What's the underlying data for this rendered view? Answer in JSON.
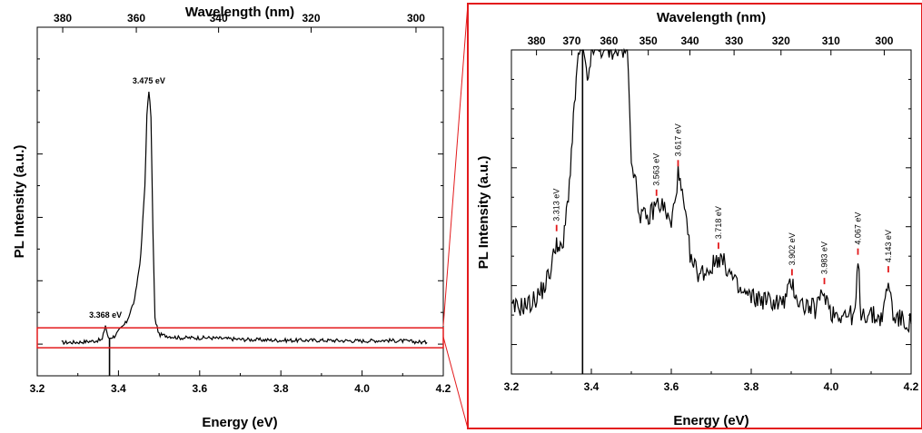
{
  "chart_data": [
    {
      "type": "line",
      "xlabel": "Energy (eV)",
      "ylabel": "PL Intensity (a.u.)",
      "top_axis_label": "Wavelength (nm)",
      "xlim": [
        3.2,
        4.2
      ],
      "ylim": [
        -0.1,
        1.0
      ],
      "x_ticks": [
        "3.2",
        "3.4",
        "3.6",
        "3.8",
        "4.0",
        "4.2"
      ],
      "top_ticks": [
        {
          "wavelength_nm": 380,
          "label": "380"
        },
        {
          "wavelength_nm": 360,
          "label": "360"
        },
        {
          "wavelength_nm": 340,
          "label": "340"
        },
        {
          "wavelength_nm": 320,
          "label": "320"
        },
        {
          "wavelength_nm": 300,
          "label": "300"
        }
      ],
      "y_tick_labels": "none",
      "series": [
        {
          "color": "#000000",
          "points": [
            [
              3.26,
              0.005
            ],
            [
              3.3,
              0.006
            ],
            [
              3.34,
              0.01
            ],
            [
              3.36,
              0.014
            ],
            [
              3.368,
              0.06
            ],
            [
              3.375,
              0.018
            ],
            [
              3.39,
              0.025
            ],
            [
              3.42,
              0.07
            ],
            [
              3.44,
              0.14
            ],
            [
              3.455,
              0.28
            ],
            [
              3.465,
              0.5
            ],
            [
              3.47,
              0.72
            ],
            [
              3.475,
              0.8
            ],
            [
              3.48,
              0.72
            ],
            [
              3.485,
              0.35
            ],
            [
              3.49,
              0.08
            ],
            [
              3.5,
              0.03
            ],
            [
              3.55,
              0.02
            ],
            [
              3.62,
              0.02
            ],
            [
              3.7,
              0.015
            ],
            [
              3.8,
              0.012
            ],
            [
              3.9,
              0.012
            ],
            [
              4.0,
              0.01
            ],
            [
              4.06,
              0.012
            ],
            [
              4.1,
              0.01
            ],
            [
              4.16,
              0.005
            ]
          ]
        }
      ],
      "vertical_line_x": 3.378,
      "annotations": [
        {
          "x": 3.475,
          "y": 0.8,
          "text": "3.475 eV"
        },
        {
          "x": 3.368,
          "y": 0.06,
          "text": "3.368 eV"
        }
      ],
      "highlight_box": {
        "x": [
          3.2,
          4.2
        ],
        "y": [
          0.0,
          0.04
        ],
        "color": "#e31a1c"
      },
      "grid": false
    },
    {
      "type": "line",
      "xlabel": "Energy (eV)",
      "ylabel": "PL Intensity (a.u.)",
      "top_axis_label": "Wavelength (nm)",
      "xlim": [
        3.2,
        4.2
      ],
      "ylim": [
        -0.1,
        1.0
      ],
      "x_ticks": [
        "3.2",
        "3.4",
        "3.6",
        "3.8",
        "4.0",
        "4.2"
      ],
      "top_ticks": [
        {
          "wavelength_nm": 380,
          "label": "380"
        },
        {
          "wavelength_nm": 370,
          "label": "370"
        },
        {
          "wavelength_nm": 360,
          "label": "360"
        },
        {
          "wavelength_nm": 350,
          "label": "350"
        },
        {
          "wavelength_nm": 340,
          "label": "340"
        },
        {
          "wavelength_nm": 330,
          "label": "330"
        },
        {
          "wavelength_nm": 320,
          "label": "320"
        },
        {
          "wavelength_nm": 310,
          "label": "310"
        },
        {
          "wavelength_nm": 300,
          "label": "300"
        }
      ],
      "y_tick_labels": "none",
      "series": [
        {
          "color": "#000000",
          "points": [
            [
              3.2,
              0.12
            ],
            [
              3.25,
              0.14
            ],
            [
              3.28,
              0.19
            ],
            [
              3.3,
              0.26
            ],
            [
              3.313,
              0.36
            ],
            [
              3.32,
              0.31
            ],
            [
              3.33,
              0.34
            ],
            [
              3.345,
              0.55
            ],
            [
              3.355,
              0.75
            ],
            [
              3.362,
              0.9
            ],
            [
              3.37,
              1.0
            ],
            [
              3.38,
              1.0
            ],
            [
              3.39,
              0.88
            ],
            [
              3.4,
              1.0
            ],
            [
              3.45,
              1.0
            ],
            [
              3.49,
              1.0
            ],
            [
              3.5,
              0.65
            ],
            [
              3.52,
              0.45
            ],
            [
              3.54,
              0.42
            ],
            [
              3.563,
              0.48
            ],
            [
              3.58,
              0.47
            ],
            [
              3.6,
              0.4
            ],
            [
              3.617,
              0.58
            ],
            [
              3.63,
              0.48
            ],
            [
              3.65,
              0.28
            ],
            [
              3.67,
              0.24
            ],
            [
              3.7,
              0.26
            ],
            [
              3.718,
              0.3
            ],
            [
              3.74,
              0.26
            ],
            [
              3.77,
              0.18
            ],
            [
              3.8,
              0.16
            ],
            [
              3.84,
              0.15
            ],
            [
              3.88,
              0.14
            ],
            [
              3.902,
              0.21
            ],
            [
              3.92,
              0.14
            ],
            [
              3.96,
              0.12
            ],
            [
              3.983,
              0.18
            ],
            [
              4.0,
              0.11
            ],
            [
              4.04,
              0.1
            ],
            [
              4.06,
              0.1
            ],
            [
              4.067,
              0.28
            ],
            [
              4.075,
              0.11
            ],
            [
              4.12,
              0.09
            ],
            [
              4.13,
              0.1
            ],
            [
              4.143,
              0.22
            ],
            [
              4.155,
              0.1
            ],
            [
              4.18,
              0.08
            ],
            [
              4.2,
              0.07
            ]
          ]
        }
      ],
      "vertical_line_x": 3.378,
      "peak_labels": [
        {
          "x": 3.313,
          "y": 0.36,
          "text": "3.313 eV"
        },
        {
          "x": 3.563,
          "y": 0.48,
          "text": "3.563 eV"
        },
        {
          "x": 3.617,
          "y": 0.58,
          "text": "3.617 eV"
        },
        {
          "x": 3.718,
          "y": 0.3,
          "text": "3.718 eV"
        },
        {
          "x": 3.902,
          "y": 0.21,
          "text": "3.902 eV"
        },
        {
          "x": 3.983,
          "y": 0.18,
          "text": "3.983 eV"
        },
        {
          "x": 4.067,
          "y": 0.28,
          "text": "4.067 eV"
        },
        {
          "x": 4.143,
          "y": 0.22,
          "text": "4.143 eV"
        }
      ],
      "peak_marker_color": "#e31a1c",
      "frame_color": "#e31a1c",
      "grid": false
    }
  ]
}
